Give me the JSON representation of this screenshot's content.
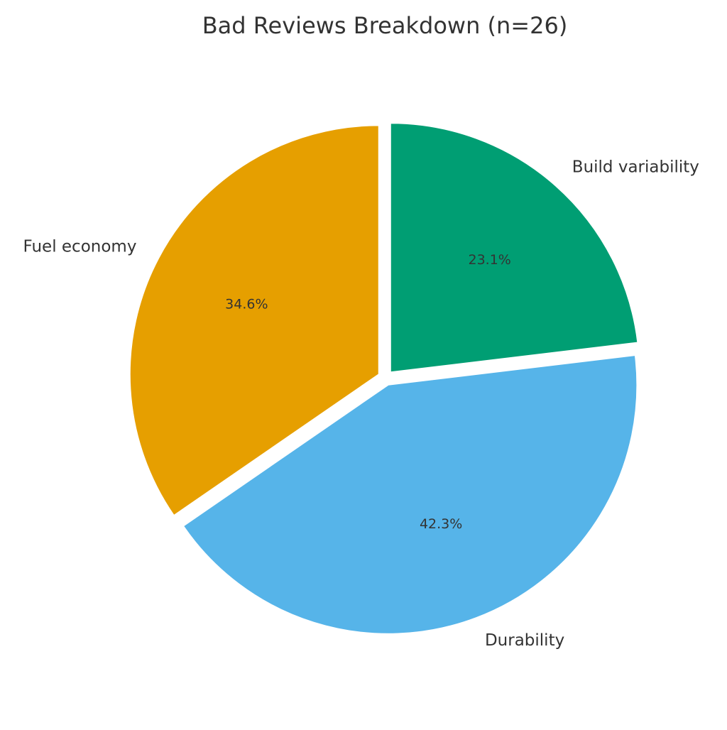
{
  "chart_data": {
    "type": "pie",
    "title": "Bad Reviews Breakdown (n=26)",
    "categories": [
      "Fuel economy",
      "Durability",
      "Build variability"
    ],
    "values": [
      34.6,
      42.3,
      23.1
    ],
    "value_labels": [
      "34.6%",
      "42.3%",
      "23.1%"
    ],
    "colors": [
      "#E69F00",
      "#56B4E9",
      "#009E73"
    ]
  }
}
